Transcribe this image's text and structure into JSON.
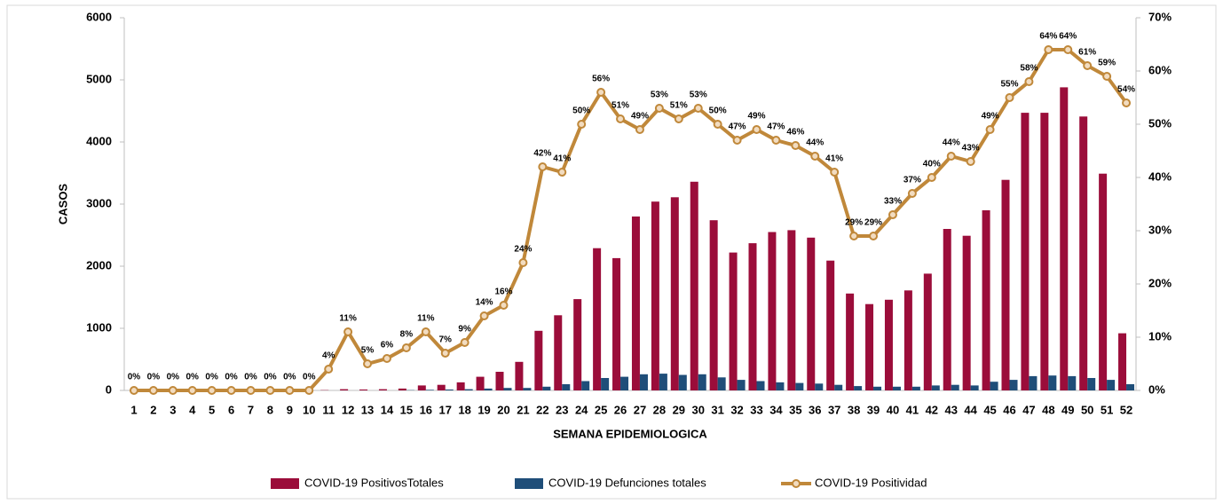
{
  "chart_data": {
    "type": "bar",
    "x_label": "SEMANA EPIDEMIOLOGICA",
    "y_label": "CASOS",
    "categories": [
      1,
      2,
      3,
      4,
      5,
      6,
      7,
      8,
      9,
      10,
      11,
      12,
      13,
      14,
      15,
      16,
      17,
      18,
      19,
      20,
      21,
      22,
      23,
      24,
      25,
      26,
      27,
      28,
      29,
      30,
      31,
      32,
      33,
      34,
      35,
      36,
      37,
      38,
      39,
      40,
      41,
      42,
      43,
      44,
      45,
      46,
      47,
      48,
      49,
      50,
      51,
      52
    ],
    "ylim": [
      0,
      6000
    ],
    "yticks": [
      0,
      1000,
      2000,
      3000,
      4000,
      5000,
      6000
    ],
    "y2lim": [
      0,
      70
    ],
    "y2ticks": [
      {
        "value": 0,
        "label": "0%"
      },
      {
        "value": 10,
        "label": "10%"
      },
      {
        "value": 20,
        "label": "20%"
      },
      {
        "value": 30,
        "label": "30%"
      },
      {
        "value": 40,
        "label": "40%"
      },
      {
        "value": 50,
        "label": "50%"
      },
      {
        "value": 60,
        "label": "60%"
      },
      {
        "value": 70,
        "label": "70%"
      }
    ],
    "grid": false,
    "legend": "bottom",
    "series": [
      {
        "name": "COVID-19 PositivosTotales",
        "color": "#9b0d3a",
        "values": [
          0,
          0,
          0,
          0,
          0,
          0,
          0,
          0,
          0,
          0,
          5,
          20,
          15,
          20,
          30,
          80,
          90,
          130,
          220,
          300,
          460,
          960,
          1210,
          1470,
          2290,
          2130,
          2800,
          3040,
          3110,
          3360,
          2740,
          2220,
          2370,
          2550,
          2580,
          2460,
          2090,
          1560,
          1390,
          1460,
          1610,
          1880,
          2600,
          2490,
          2900,
          3390,
          4470,
          4470,
          4880,
          4410,
          3490,
          920
        ]
      },
      {
        "name": "COVID-19 Defunciones totales",
        "color": "#1f4e79",
        "values": [
          0,
          0,
          0,
          0,
          0,
          0,
          0,
          0,
          0,
          0,
          0,
          0,
          0,
          0,
          5,
          10,
          15,
          20,
          30,
          40,
          40,
          60,
          100,
          150,
          200,
          220,
          260,
          270,
          250,
          260,
          210,
          170,
          150,
          130,
          120,
          110,
          90,
          70,
          60,
          60,
          60,
          80,
          90,
          80,
          140,
          170,
          230,
          240,
          230,
          200,
          170,
          100
        ]
      },
      {
        "name": "COVID-19 Positividad",
        "color": "#c0883a",
        "type": "line",
        "axis": "y2",
        "values": [
          0,
          0,
          0,
          0,
          0,
          0,
          0,
          0,
          0,
          0,
          4,
          11,
          5,
          6,
          8,
          11,
          7,
          9,
          14,
          16,
          24,
          42,
          41,
          50,
          56,
          51,
          49,
          53,
          51,
          53,
          50,
          47,
          49,
          47,
          46,
          44,
          41,
          29,
          29,
          33,
          37,
          40,
          44,
          43,
          49,
          55,
          58,
          64,
          64,
          61,
          59,
          54
        ],
        "value_labels": [
          "0%",
          "0%",
          "0%",
          "0%",
          "0%",
          "0%",
          "0%",
          "0%",
          "0%",
          "0%",
          "4%",
          "11%",
          "5%",
          "6%",
          "8%",
          "11%",
          "7%",
          "9%",
          "14%",
          "16%",
          "24%",
          "42%",
          "41%",
          "50%",
          "56%",
          "51%",
          "49%",
          "53%",
          "51%",
          "53%",
          "50%",
          "47%",
          "49%",
          "47%",
          "46%",
          "44%",
          "41%",
          "29%",
          "29%",
          "33%",
          "37%",
          "40%",
          "44%",
          "43%",
          "49%",
          "55%",
          "58%",
          "64%",
          "64%",
          "61%",
          "59%",
          "54%"
        ]
      }
    ]
  }
}
